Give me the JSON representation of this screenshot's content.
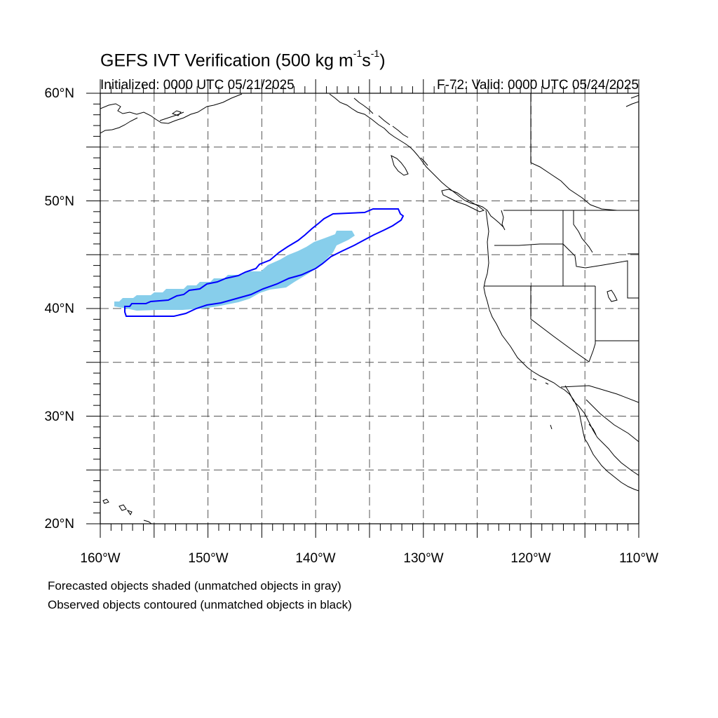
{
  "header": {
    "title_main": "GEFS IVT Verification (500 kg m",
    "title_exp1": "-1",
    "title_mid": "s",
    "title_exp2": "-1",
    "title_end": ")",
    "initialized": "Initialized: 0000 UTC 05/21/2025",
    "valid": "F-72: Valid: 0000 UTC 05/24/2025"
  },
  "map": {
    "lon_range": [
      -160,
      -110
    ],
    "lat_range": [
      20,
      60
    ],
    "grid_spacing_deg": 5,
    "grid_style": "dashed",
    "lat_labels": [
      "60°N",
      "50°N",
      "40°N",
      "30°N",
      "20°N"
    ],
    "lon_labels": [
      "160°W",
      "150°W",
      "140°W",
      "130°W",
      "120°W",
      "110°W"
    ],
    "forecast_object_color": "#87ceeb",
    "observed_contour_color": "#0000ff",
    "coastline_color": "#000000"
  },
  "legend": {
    "line1": "Forecasted objects shaded (unmatched objects in gray)",
    "line2": "Observed objects contoured (unmatched objects in black)"
  }
}
